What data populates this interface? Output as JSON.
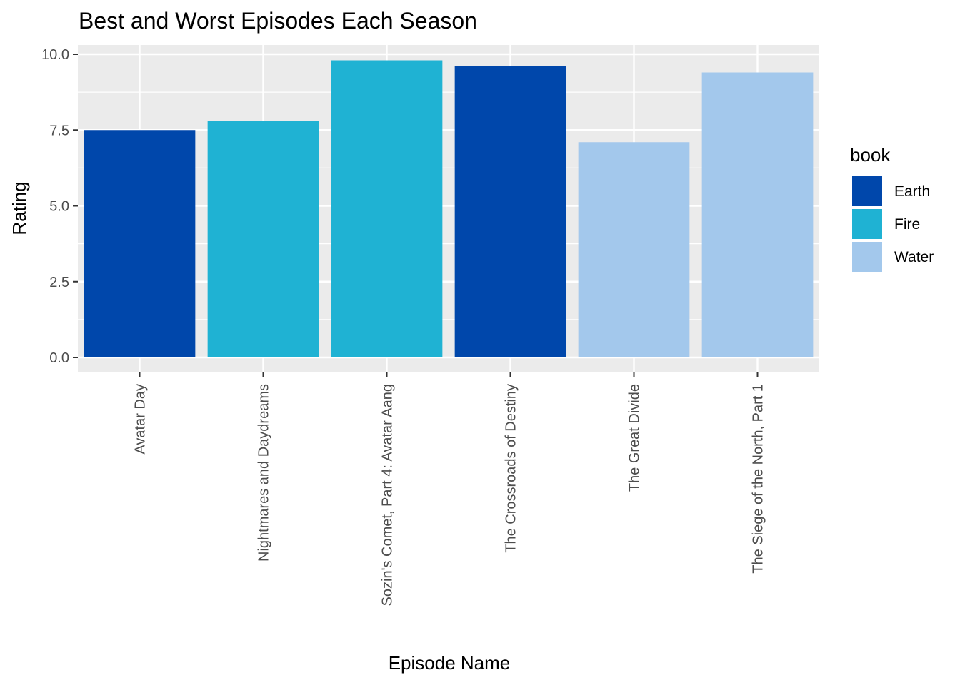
{
  "chart_data": {
    "type": "bar",
    "title": "Best and Worst Episodes Each Season",
    "xlabel": "Episode Name",
    "ylabel": "Rating",
    "ylim": [
      0,
      10
    ],
    "y_ticks": [
      "0.0",
      "2.5",
      "5.0",
      "7.5",
      "10.0"
    ],
    "y_tick_values": [
      0,
      2.5,
      5,
      7.5,
      10
    ],
    "categories": [
      "Avatar Day",
      "Nightmares and Daydreams",
      "Sozin's Comet, Part 4: Avatar Aang",
      "The Crossroads of Destiny",
      "The Great Divide",
      "The Siege of the North, Part 1"
    ],
    "values": [
      7.5,
      7.8,
      9.8,
      9.6,
      7.1,
      9.4
    ],
    "groups": [
      "Earth",
      "Fire",
      "Fire",
      "Earth",
      "Water",
      "Water"
    ],
    "legend": {
      "title": "book",
      "position": "right",
      "entries": [
        {
          "label": "Earth",
          "color": "#0047AB"
        },
        {
          "label": "Fire",
          "color": "#1FB2D3"
        },
        {
          "label": "Water",
          "color": "#A3C8EC"
        }
      ]
    },
    "grid": true,
    "panel_background": "#EBEBEB",
    "grid_color": "#FFFFFF"
  }
}
